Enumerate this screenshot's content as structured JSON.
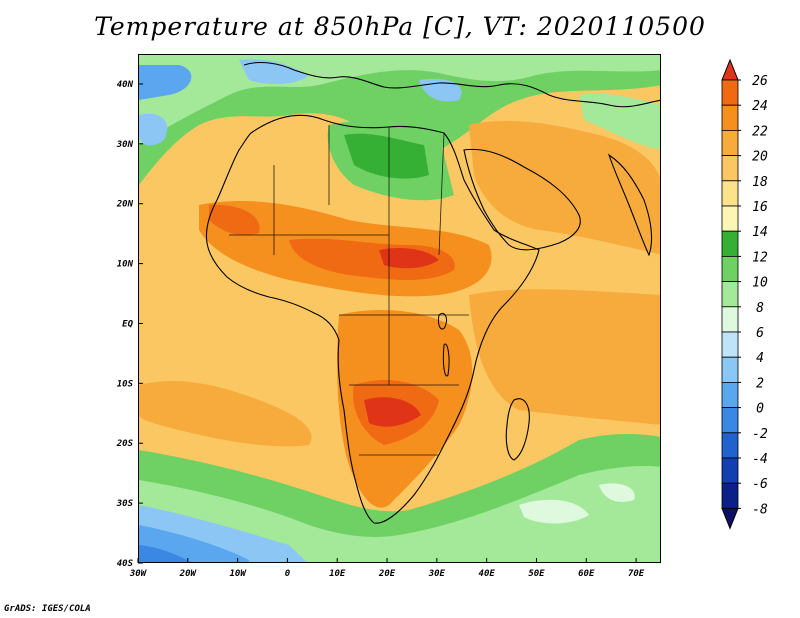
{
  "title": "Temperature at 850hPa [C], VT: 2020110500",
  "footer": "GrADS: IGES/COLA",
  "map": {
    "variable": "Temperature at 850hPa",
    "units": "C",
    "valid_time": "2020110500",
    "lon_range": [
      -30,
      75
    ],
    "lat_range": [
      -40,
      45
    ],
    "lon_ticks": [
      "30W",
      "20W",
      "10W",
      "0",
      "10E",
      "20E",
      "30E",
      "40E",
      "50E",
      "60E",
      "70E"
    ],
    "lat_ticks": [
      "40N",
      "30N",
      "20N",
      "10N",
      "EQ",
      "10S",
      "20S",
      "30S",
      "40S"
    ]
  },
  "colorbar": {
    "labels": [
      "26",
      "24",
      "22",
      "20",
      "18",
      "16",
      "14",
      "12",
      "10",
      "8",
      "6",
      "4",
      "2",
      "0",
      "-2",
      "-4",
      "-6",
      "-8"
    ],
    "colors": [
      "#e03418",
      "#f06a14",
      "#f58f1e",
      "#f8ab3d",
      "#fbc762",
      "#fce38b",
      "#fcf6b4",
      "#35b035",
      "#6fd063",
      "#a4e89a",
      "#def9de",
      "#bfe4fa",
      "#8cc6f5",
      "#5aa6ef",
      "#3a87e4",
      "#2262cf",
      "#1340b0",
      "#0b2188",
      "#0d0f66"
    ]
  }
}
